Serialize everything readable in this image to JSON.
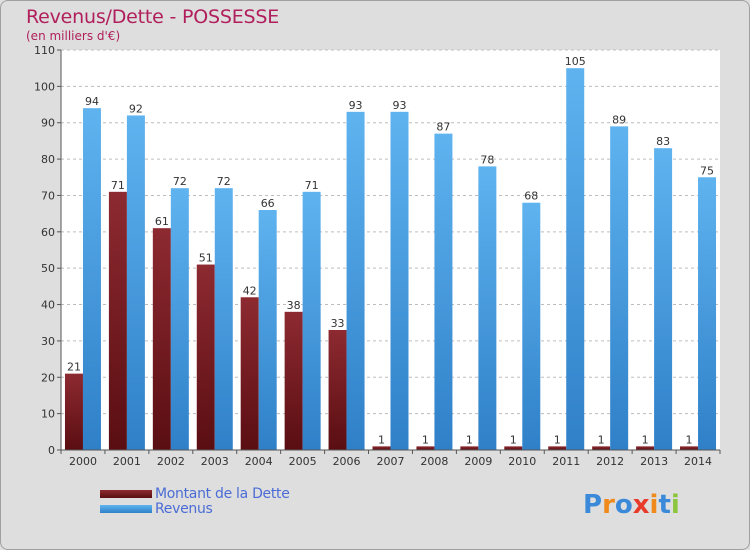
{
  "chart_data": {
    "type": "bar",
    "title": "Revenus/Dette - POSSESSE",
    "subtitle": "(en milliers d'€)",
    "xlabel": "",
    "ylabel": "",
    "ylim": [
      0,
      110
    ],
    "yticks": [
      0,
      10,
      20,
      30,
      40,
      50,
      60,
      70,
      80,
      90,
      100,
      110
    ],
    "grid": true,
    "categories": [
      "2000",
      "2001",
      "2002",
      "2003",
      "2004",
      "2005",
      "2006",
      "2007",
      "2008",
      "2009",
      "2010",
      "2011",
      "2012",
      "2013",
      "2014"
    ],
    "series": [
      {
        "name": "Montant de la Dette",
        "color": "#7a1e24",
        "values": [
          21,
          71,
          61,
          51,
          42,
          38,
          33,
          1,
          1,
          1,
          1,
          1,
          1,
          1,
          1
        ]
      },
      {
        "name": "Revenus",
        "color": "#3f9de3",
        "values": [
          94,
          92,
          72,
          72,
          66,
          71,
          93,
          93,
          87,
          78,
          68,
          105,
          89,
          83,
          75
        ]
      }
    ],
    "legend": [
      {
        "label": "Montant de la Dette",
        "color": "#7a1e24"
      },
      {
        "label": "Revenus",
        "color": "#3f9de3"
      }
    ],
    "legend_position": "bottom-left"
  },
  "logo": {
    "text": "Proxiti",
    "letters": [
      "P",
      "r",
      "o",
      "x",
      "i",
      "t",
      "i"
    ],
    "colors": [
      "#3b8ad9",
      "#f08a1c",
      "#3b8ad9",
      "#e83b2a",
      "#f08a1c",
      "#3b8ad9",
      "#8cc63f"
    ]
  }
}
